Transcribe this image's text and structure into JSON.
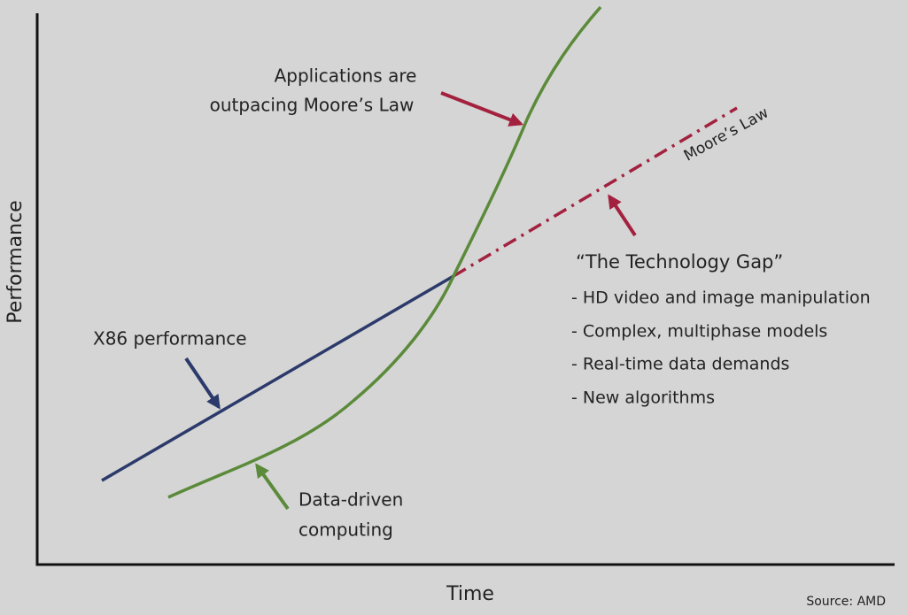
{
  "axes": {
    "x_label": "Time",
    "y_label": "Performance"
  },
  "annotations": {
    "applications": [
      "Applications are",
      "outpacing Moore’s Law"
    ],
    "moores_law": "Moore’s Law",
    "technology_gap": {
      "title": "“The Technology Gap”",
      "items": [
        "- HD video and image manipulation",
        "- Complex, multiphase models",
        "- Real-time data demands",
        "- New algorithms"
      ]
    },
    "x86": "X86 performance",
    "data_driven": [
      "Data-driven",
      "computing"
    ]
  },
  "source": "Source: AMD"
}
